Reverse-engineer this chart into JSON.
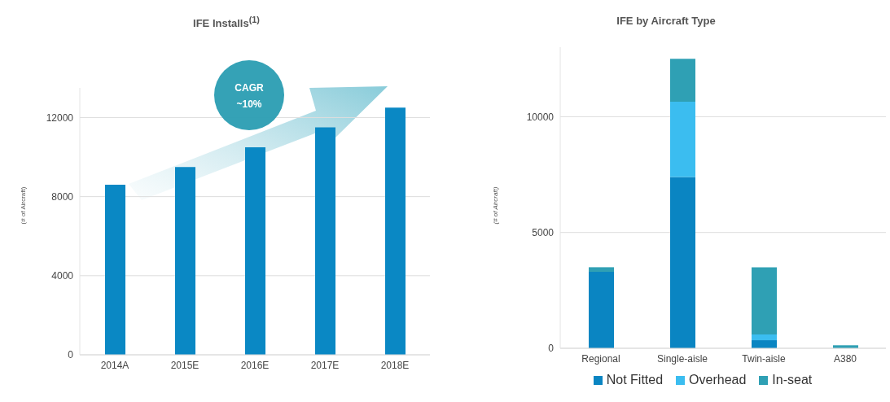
{
  "chart_data": [
    {
      "type": "bar",
      "title": "IFE Installs$^{(1)}$",
      "ylabel": "(# of Aircraft)",
      "categories": [
        "2014A",
        "2015E",
        "2016E",
        "2017E",
        "2018E"
      ],
      "values": [
        8600,
        9500,
        10500,
        11500,
        12500
      ],
      "color": "#0a88c4",
      "ylim": [
        0,
        13500
      ],
      "yticks": [
        0,
        4000,
        8000,
        12000
      ],
      "grid": "y",
      "legend": false,
      "annotations": [
        "CAGR ~10%"
      ]
    },
    {
      "type": "bar",
      "title": "IFE by Aircraft Type",
      "ylabel": "(# of Aircraft)",
      "categories": [
        "Regional",
        "Single-aisle",
        "Twin-aisle",
        "A380"
      ],
      "stacked": true,
      "series": [
        {
          "name": "Not Fitted",
          "color": "#0a85c2",
          "values": [
            3300,
            7400,
            350,
            null
          ]
        },
        {
          "name": "Overhead",
          "color": "#3bbdf0",
          "values": [
            null,
            3250,
            250,
            null
          ]
        },
        {
          "name": "In-seat",
          "color": "#2fa0b4",
          "values": [
            200,
            1850,
            2900,
            130
          ]
        }
      ],
      "ylim": [
        0,
        13000
      ],
      "yticks": [
        0,
        5000,
        10000
      ],
      "grid": "y",
      "legend": "bottom"
    }
  ]
}
